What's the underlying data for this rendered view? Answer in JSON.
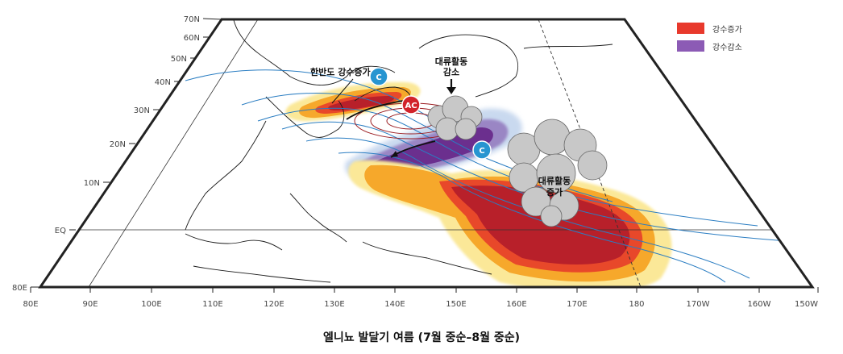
{
  "caption": "엘니뇨 발달기 여름 (7월 중순–8월 중순)",
  "legend": [
    {
      "label": "강수증가",
      "color": "#e8392c"
    },
    {
      "label": "강수감소",
      "color": "#8c5bb5"
    }
  ],
  "lat_labels": [
    "70N",
    "60N",
    "50N",
    "40N",
    "30N",
    "20N",
    "10N",
    "EQ",
    "80E"
  ],
  "lon_labels": [
    "80E",
    "90E",
    "100E",
    "110E",
    "120E",
    "130E",
    "140E",
    "150E",
    "160E",
    "170E",
    "180",
    "170W",
    "160W",
    "150W"
  ],
  "annotations": {
    "korea_increase": "한반도 강수증가",
    "convection_decrease_1": "대류활동",
    "convection_decrease_2": "감소",
    "convection_increase_1": "대류활동",
    "convection_increase_2": "증가"
  },
  "badges": {
    "cyclone_north": "C",
    "anticyclone": "AC",
    "cyclone_south": "C"
  },
  "colors": {
    "frame": "#222222",
    "streamline": "#2a7dc2",
    "coast": "#1a1a1a",
    "cyclone": "#2795d1",
    "anticyclone": "#d2232a",
    "precip_increase_dark": "#b8202a",
    "precip_increase_mid": "#e8482a",
    "precip_increase_light": "#f6a82b",
    "precip_increase_pale": "#fbe898",
    "precip_decrease": "#6b2f8e"
  }
}
